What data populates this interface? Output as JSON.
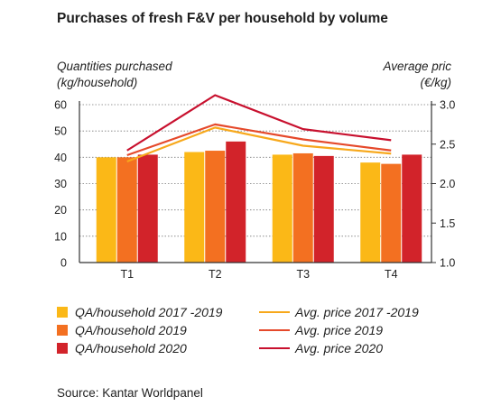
{
  "title": "Purchases of fresh F&V per household by volume",
  "left_axis_title": [
    "Quantities purchased",
    "(kg/household)"
  ],
  "right_axis_title": [
    "Average pric",
    "(€/kg)"
  ],
  "source": "Source: Kantar Worldpanel",
  "colors": {
    "qa_2017_2019": "#FBB817",
    "qa_2019": "#F37021",
    "qa_2020": "#D2232A",
    "price_2017_2019": "#F7A81B",
    "price_2019": "#E5492B",
    "price_2020": "#C8102E",
    "grid": "#7a7a7a",
    "axis": "#333333"
  },
  "legend": {
    "bars": [
      {
        "label": "QA/household 2017 -2019",
        "color_key": "qa_2017_2019"
      },
      {
        "label": "QA/household 2019",
        "color_key": "qa_2019"
      },
      {
        "label": "QA/household 2020",
        "color_key": "qa_2020"
      }
    ],
    "lines": [
      {
        "label": "Avg. price 2017 -2019",
        "color_key": "price_2017_2019"
      },
      {
        "label": "Avg. price 2019",
        "color_key": "price_2019"
      },
      {
        "label": "Avg. price 2020",
        "color_key": "price_2020"
      }
    ]
  },
  "chart_data": {
    "type": "bar",
    "title": "Purchases of fresh F&V per household by volume",
    "categories": [
      "T1",
      "T2",
      "T3",
      "T4"
    ],
    "ylabel": "Quantities purchased (kg/household)",
    "ylim": [
      0,
      60
    ],
    "yticks": [
      0,
      10,
      20,
      30,
      40,
      50,
      60
    ],
    "y2label": "Average pric (€/kg)",
    "y2lim": [
      1.0,
      3.0
    ],
    "y2ticks": [
      "1.0",
      "1.5",
      "2.0",
      "2.5",
      "3.0"
    ],
    "grid": "horizontal dotted",
    "legend_position": "bottom",
    "series": [
      {
        "name": "QA/household 2017 -2019",
        "type": "bar",
        "axis": "left",
        "values": [
          40,
          42,
          41,
          38
        ]
      },
      {
        "name": "QA/household 2019",
        "type": "bar",
        "axis": "left",
        "values": [
          40,
          42.5,
          41.5,
          37.5
        ]
      },
      {
        "name": "QA/household 2020",
        "type": "bar",
        "axis": "left",
        "values": [
          41,
          46,
          40.5,
          41
        ]
      },
      {
        "name": "Avg. price 2017 -2019",
        "type": "line",
        "axis": "right",
        "values": [
          2.28,
          2.71,
          2.48,
          2.38
        ]
      },
      {
        "name": "Avg. price 2019",
        "type": "line",
        "axis": "right",
        "values": [
          2.36,
          2.75,
          2.56,
          2.42
        ]
      },
      {
        "name": "Avg. price 2020",
        "type": "line",
        "axis": "right",
        "values": [
          2.42,
          3.12,
          2.69,
          2.55
        ]
      }
    ]
  }
}
